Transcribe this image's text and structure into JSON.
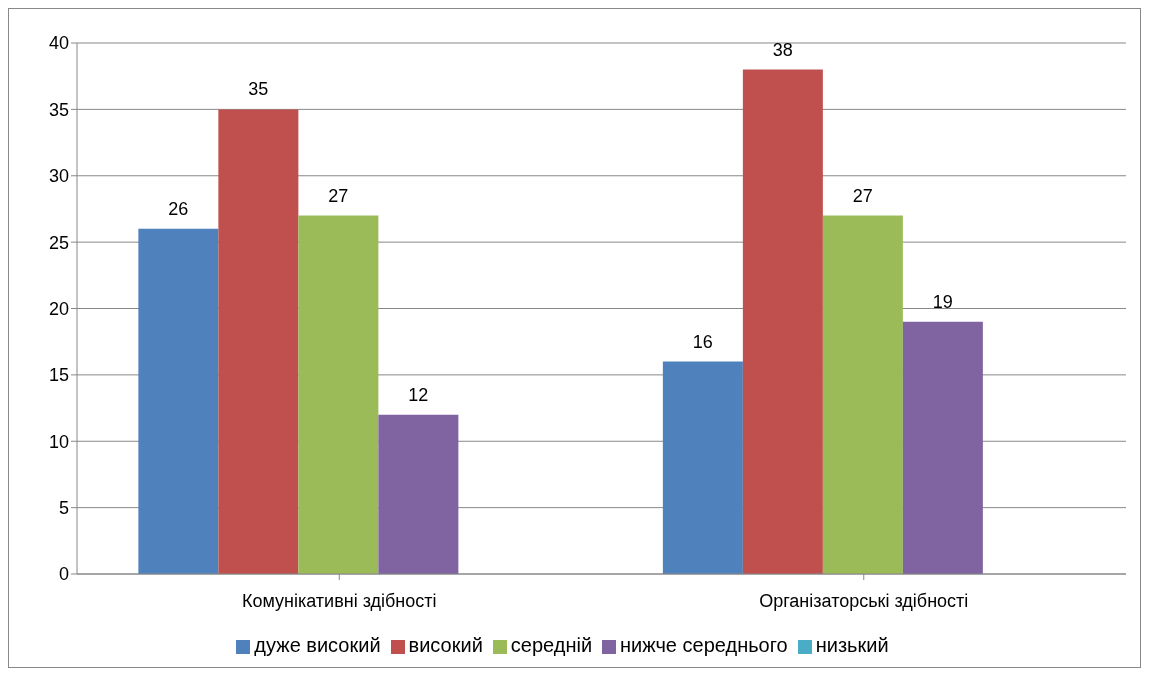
{
  "chart_data": {
    "type": "bar",
    "categories": [
      "Комунікативні здібності",
      "Організаторські здібності"
    ],
    "series": [
      {
        "name": "дуже високий",
        "color": "#4f81bd",
        "values": [
          26,
          16
        ]
      },
      {
        "name": "високий",
        "color": "#c0504d",
        "values": [
          35,
          38
        ]
      },
      {
        "name": "середній",
        "color": "#9bbb59",
        "values": [
          27,
          27
        ]
      },
      {
        "name": "нижче середнього",
        "color": "#8064a2",
        "values": [
          12,
          19
        ]
      },
      {
        "name": "низький",
        "color": "#4bacc6",
        "values": [
          null,
          null
        ]
      }
    ],
    "ylim": [
      0,
      40
    ],
    "yticks": [
      0,
      5,
      10,
      15,
      20,
      25,
      30,
      35,
      40
    ],
    "grid": "y",
    "legend": "bottom",
    "data_labels": true
  }
}
